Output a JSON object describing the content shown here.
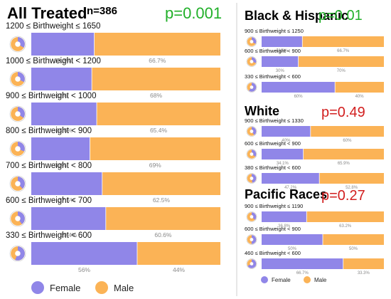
{
  "colors": {
    "female": "#9086e8",
    "male": "#fbb356",
    "green": "#22b02a",
    "red": "#d21f1f",
    "divider": "#cfcfcf"
  },
  "legend": {
    "female": "Female",
    "male": "Male"
  },
  "chart_data": [
    {
      "type": "bar",
      "title": "All Treated",
      "n_label": "n=386",
      "p_value": "p=0.001",
      "p_color": "green",
      "stacked": true,
      "percent_of_total": true,
      "categories": [
        "1200 ≤ Birthweight ≤ 1650",
        "1000 ≤ Birthweight < 1200",
        "900 ≤ Birthweight < 1000",
        "800 ≤ Birthweight < 900",
        "700 ≤ Birthweight < 800",
        "600 ≤ Birthweight < 700",
        "330 ≤ Birthweight < 600"
      ],
      "series": [
        {
          "name": "Female",
          "values": [
            33.3,
            32,
            34.6,
            31,
            37.5,
            39.4,
            56
          ],
          "labels": [
            "33.3%",
            "32%",
            "34.6%",
            "31%",
            "37.5%",
            "39.4%",
            "56%"
          ]
        },
        {
          "name": "Male",
          "values": [
            66.7,
            68,
            65.4,
            69,
            62.5,
            60.6,
            44
          ],
          "labels": [
            "66.7%",
            "68%",
            "65.4%",
            "69%",
            "62.5%",
            "60.6%",
            "44%"
          ]
        }
      ]
    },
    {
      "type": "bar",
      "title": "Black & Hispanic",
      "p_value": "p=0.01",
      "p_color": "green",
      "stacked": true,
      "percent_of_total": true,
      "categories": [
        "900 ≤ Birthweight ≤ 1250",
        "600 ≤ Birthweight < 900",
        "330 ≤ Birthweight < 600"
      ],
      "series": [
        {
          "name": "Female",
          "values": [
            33.3,
            30,
            60
          ],
          "labels": [
            "33.3%",
            "30%",
            "60%"
          ]
        },
        {
          "name": "Male",
          "values": [
            66.7,
            70,
            40
          ],
          "labels": [
            "66.7%",
            "70%",
            "40%"
          ]
        }
      ]
    },
    {
      "type": "bar",
      "title": "White",
      "p_value": "p=0.49",
      "p_color": "red",
      "stacked": true,
      "percent_of_total": true,
      "categories": [
        "900 ≤ Birthweight ≤ 1330",
        "600 ≤ Birthweight < 900",
        "380 ≤ Birthweight < 600"
      ],
      "series": [
        {
          "name": "Female",
          "values": [
            40,
            34.1,
            47.2
          ],
          "labels": [
            "40%",
            "34.1%",
            "47.2%"
          ]
        },
        {
          "name": "Male",
          "values": [
            60,
            65.9,
            52.8
          ],
          "labels": [
            "60%",
            "65.9%",
            "52.8%"
          ]
        }
      ]
    },
    {
      "type": "bar",
      "title": "Pacific Races",
      "p_value": "p=0.27",
      "p_color": "red",
      "stacked": true,
      "percent_of_total": true,
      "categories": [
        "900 ≤ Birthweight ≤ 1190",
        "600 ≤ Birthweight < 900",
        "460 ≤ Birthweight < 600"
      ],
      "series": [
        {
          "name": "Female",
          "values": [
            36.8,
            50,
            66.7
          ],
          "labels": [
            "36.8%",
            "50%",
            "66.7%"
          ]
        },
        {
          "name": "Male",
          "values": [
            63.2,
            50,
            33.3
          ],
          "labels": [
            "63.2%",
            "50%",
            "33.3%"
          ]
        }
      ]
    }
  ]
}
